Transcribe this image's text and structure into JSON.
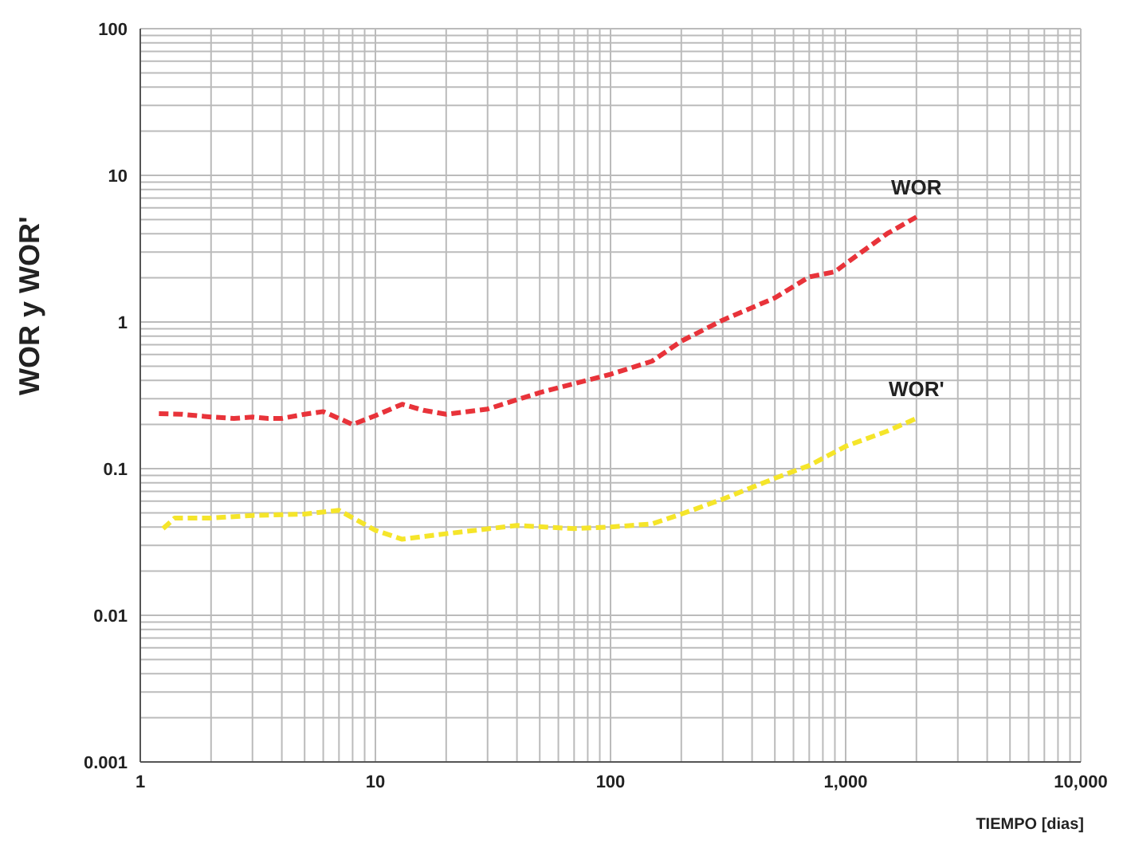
{
  "chart_data": {
    "type": "line",
    "xlabel": "TIEMPO [dias]",
    "ylabel": "WOR  y  WOR'",
    "log": "xy",
    "grid": true,
    "marker": "none",
    "line_style": "dashed",
    "legend": false,
    "xlim": [
      1,
      10000
    ],
    "ylim": [
      0.001,
      100
    ],
    "xticks": [
      1,
      {
        "value": 2,
        "label": null
      },
      {
        "value": 3,
        "label": null
      },
      {
        "value": 4,
        "label": null
      },
      {
        "value": 5,
        "label": null
      },
      {
        "value": 6,
        "label": null
      },
      {
        "value": 7,
        "label": null
      },
      {
        "value": 8,
        "label": null
      },
      {
        "value": 9,
        "label": null
      },
      10,
      {
        "value": 20,
        "label": null
      },
      {
        "value": 30,
        "label": null
      },
      {
        "value": 40,
        "label": null
      },
      {
        "value": 50,
        "label": null
      },
      {
        "value": 60,
        "label": null
      },
      {
        "value": 70,
        "label": null
      },
      {
        "value": 80,
        "label": null
      },
      {
        "value": 90,
        "label": null
      },
      100,
      {
        "value": 200,
        "label": null
      },
      {
        "value": 300,
        "label": null
      },
      {
        "value": 400,
        "label": null
      },
      {
        "value": 500,
        "label": null
      },
      {
        "value": 600,
        "label": null
      },
      {
        "value": 700,
        "label": null
      },
      {
        "value": 800,
        "label": null
      },
      {
        "value": 900,
        "label": null
      },
      {
        "value": 1000,
        "label": "1,000"
      },
      {
        "value": 2000,
        "label": null
      },
      {
        "value": 3000,
        "label": null
      },
      {
        "value": 4000,
        "label": null
      },
      {
        "value": 5000,
        "label": null
      },
      {
        "value": 6000,
        "label": null
      },
      {
        "value": 7000,
        "label": null
      },
      {
        "value": 8000,
        "label": null
      },
      {
        "value": 9000,
        "label": null
      },
      {
        "value": 10000,
        "label": "10,000"
      }
    ],
    "yticks": [
      0.001,
      {
        "value": 0.002,
        "label": null
      },
      {
        "value": 0.003,
        "label": null
      },
      {
        "value": 0.004,
        "label": null
      },
      {
        "value": 0.005,
        "label": null
      },
      {
        "value": 0.006,
        "label": null
      },
      {
        "value": 0.007,
        "label": null
      },
      {
        "value": 0.008,
        "label": null
      },
      {
        "value": 0.009,
        "label": null
      },
      0.01,
      {
        "value": 0.02,
        "label": null
      },
      {
        "value": 0.03,
        "label": null
      },
      {
        "value": 0.04,
        "label": null
      },
      {
        "value": 0.05,
        "label": null
      },
      {
        "value": 0.06,
        "label": null
      },
      {
        "value": 0.07,
        "label": null
      },
      {
        "value": 0.08,
        "label": null
      },
      {
        "value": 0.09,
        "label": null
      },
      0.1,
      {
        "value": 0.2,
        "label": null
      },
      {
        "value": 0.3,
        "label": null
      },
      {
        "value": 0.4,
        "label": null
      },
      {
        "value": 0.5,
        "label": null
      },
      {
        "value": 0.6,
        "label": null
      },
      {
        "value": 0.7,
        "label": null
      },
      {
        "value": 0.8,
        "label": null
      },
      {
        "value": 0.9,
        "label": null
      },
      1,
      {
        "value": 2,
        "label": null
      },
      {
        "value": 3,
        "label": null
      },
      {
        "value": 4,
        "label": null
      },
      {
        "value": 5,
        "label": null
      },
      {
        "value": 6,
        "label": null
      },
      {
        "value": 7,
        "label": null
      },
      {
        "value": 8,
        "label": null
      },
      {
        "value": 9,
        "label": null
      },
      10,
      {
        "value": 20,
        "label": null
      },
      {
        "value": 30,
        "label": null
      },
      {
        "value": 40,
        "label": null
      },
      {
        "value": 50,
        "label": null
      },
      {
        "value": 60,
        "label": null
      },
      {
        "value": 70,
        "label": null
      },
      {
        "value": 80,
        "label": null
      },
      {
        "value": 90,
        "label": null
      },
      100
    ],
    "series": [
      {
        "name": "WOR",
        "color": "#e8333a",
        "x": [
          1.2,
          1.5,
          2,
          2.5,
          3,
          3.5,
          4,
          5,
          6,
          7,
          8,
          10,
          13,
          16,
          20,
          30,
          50,
          70,
          100,
          150,
          200,
          300,
          500,
          700,
          900,
          1000,
          1500,
          2000
        ],
        "values": [
          0.237,
          0.235,
          0.225,
          0.22,
          0.225,
          0.22,
          0.22,
          0.235,
          0.245,
          0.22,
          0.2,
          0.23,
          0.275,
          0.25,
          0.235,
          0.255,
          0.33,
          0.38,
          0.44,
          0.54,
          0.74,
          1.03,
          1.46,
          2.03,
          2.2,
          2.5,
          4.0,
          5.2
        ]
      },
      {
        "name": "WOR'",
        "color": "#f5e52a",
        "x": [
          1.25,
          1.4,
          2,
          3,
          5,
          7,
          10,
          13,
          20,
          40,
          70,
          100,
          150,
          200,
          300,
          500,
          700,
          1000,
          1500,
          2000
        ],
        "values": [
          0.039,
          0.046,
          0.046,
          0.048,
          0.049,
          0.052,
          0.038,
          0.033,
          0.036,
          0.041,
          0.039,
          0.04,
          0.042,
          0.049,
          0.062,
          0.086,
          0.105,
          0.142,
          0.18,
          0.22
        ]
      }
    ]
  }
}
